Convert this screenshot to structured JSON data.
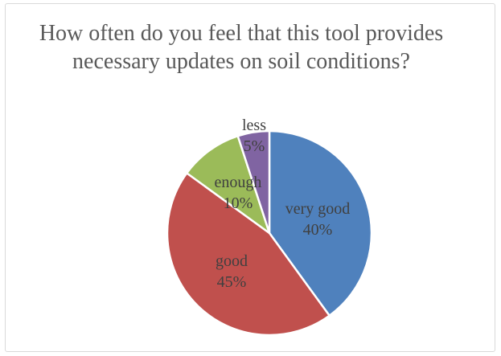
{
  "chart_data": {
    "type": "pie",
    "title": "How often do you feel that this tool provides necessary updates on soil conditions?",
    "legend": "none",
    "slices": [
      {
        "label": "very good",
        "value": 40,
        "percent_label": "40%",
        "color": "#4f81bd"
      },
      {
        "label": "good",
        "value": 45,
        "percent_label": "45%",
        "color": "#c0504d"
      },
      {
        "label": "enough",
        "value": 10,
        "percent_label": "10%",
        "color": "#9bbb59"
      },
      {
        "label": "less",
        "value": 5,
        "percent_label": "5%",
        "color": "#8064a2"
      }
    ]
  }
}
